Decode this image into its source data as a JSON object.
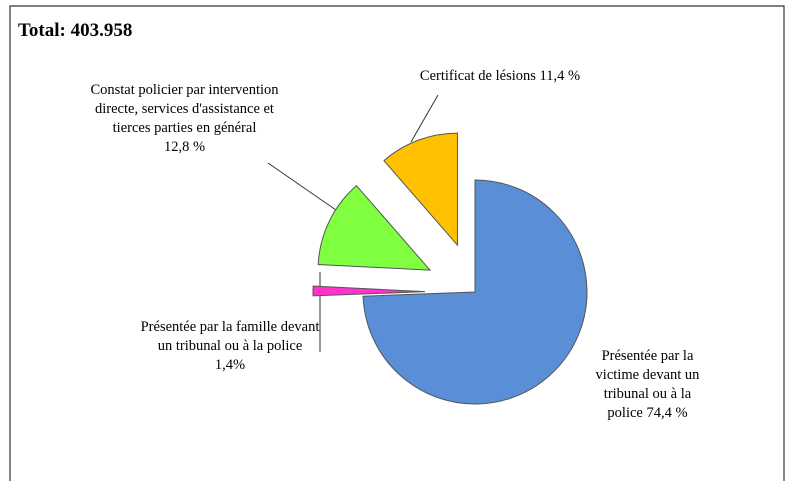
{
  "chart_data": {
    "type": "pie",
    "title": "Total: 403.958",
    "categories": [
      "Présentée par la victime devant un tribunal ou à la police",
      "Présentée par la famille devant un tribunal ou à la police",
      "Constat policier par intervention directe, services d'assistance et tierces parties en général",
      "Certificat de lésions"
    ],
    "values": [
      74.4,
      1.4,
      12.8,
      11.4
    ],
    "value_labels": [
      "74,4 %",
      "1,4%",
      "12,8 %",
      "11,4 %"
    ],
    "colors": [
      "#5a8fd8",
      "#ff33cc",
      "#80ff40",
      "#ffc000"
    ],
    "exploded": [
      false,
      true,
      true,
      true
    ]
  }
}
